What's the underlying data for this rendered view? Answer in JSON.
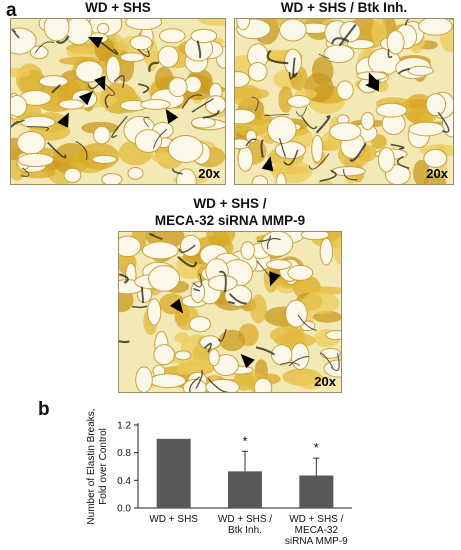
{
  "panel_a": {
    "letter": "a",
    "images": [
      {
        "title": "WD + SHS",
        "magnification": "20x"
      },
      {
        "title": "WD + SHS / Btk Inh.",
        "magnification": "20x"
      },
      {
        "title_line1": "WD + SHS /",
        "title_line2": "MECA-32 siRNA MMP-9",
        "magnification": "20x"
      }
    ]
  },
  "panel_b": {
    "letter": "b"
  },
  "chart_data": {
    "type": "bar",
    "categories": [
      [
        "WD + SHS"
      ],
      [
        "WD + SHS /",
        "Btk Inh."
      ],
      [
        "WD + SHS /",
        "MECA-32",
        "siRNA MMP-9"
      ]
    ],
    "values": [
      1.0,
      0.53,
      0.47
    ],
    "error_upper": [
      0.0,
      0.29,
      0.25
    ],
    "significance": [
      "",
      "*",
      "*"
    ],
    "ylabel_lines": [
      "Number of Elastin Breaks,",
      "Fold over Control"
    ],
    "ylim": [
      0,
      1.2
    ],
    "yticks": [
      "0.0",
      "0.4",
      "0.8",
      "1.2"
    ],
    "bar_color": "#595959",
    "grid": false
  }
}
